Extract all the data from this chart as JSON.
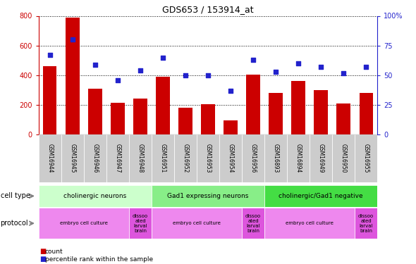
{
  "title": "GDS653 / 153914_at",
  "samples": [
    "GSM16944",
    "GSM16945",
    "GSM16946",
    "GSM16947",
    "GSM16948",
    "GSM16951",
    "GSM16952",
    "GSM16953",
    "GSM16954",
    "GSM16956",
    "GSM16893",
    "GSM16894",
    "GSM16949",
    "GSM16950",
    "GSM16955"
  ],
  "counts": [
    460,
    790,
    310,
    215,
    245,
    390,
    180,
    205,
    95,
    405,
    280,
    360,
    300,
    210,
    280
  ],
  "percentiles": [
    67,
    80,
    59,
    46,
    54,
    65,
    50,
    50,
    37,
    63,
    53,
    60,
    57,
    52,
    57
  ],
  "bar_color": "#cc0000",
  "dot_color": "#2222cc",
  "ylim_left": [
    0,
    800
  ],
  "ylim_right": [
    0,
    100
  ],
  "yticks_left": [
    0,
    200,
    400,
    600,
    800
  ],
  "yticks_right": [
    0,
    25,
    50,
    75,
    100
  ],
  "cell_type_groups": [
    {
      "label": "cholinergic neurons",
      "start": 0,
      "end": 5,
      "color": "#ccffcc"
    },
    {
      "label": "Gad1 expressing neurons",
      "start": 5,
      "end": 10,
      "color": "#88ee88"
    },
    {
      "label": "cholinergic/Gad1 negative",
      "start": 10,
      "end": 15,
      "color": "#44dd44"
    }
  ],
  "protocol_groups": [
    {
      "label": "embryo cell culture",
      "start": 0,
      "end": 4,
      "color": "#ee88ee"
    },
    {
      "label": "dissoo\nated\nlarval\nbrain",
      "start": 4,
      "end": 5,
      "color": "#dd55dd"
    },
    {
      "label": "embryo cell culture",
      "start": 5,
      "end": 9,
      "color": "#ee88ee"
    },
    {
      "label": "dissoo\nated\nlarval\nbrain",
      "start": 9,
      "end": 10,
      "color": "#dd55dd"
    },
    {
      "label": "embryo cell culture",
      "start": 10,
      "end": 14,
      "color": "#ee88ee"
    },
    {
      "label": "dissoo\nated\nlarval\nbrain",
      "start": 14,
      "end": 15,
      "color": "#dd55dd"
    }
  ],
  "bg_color": "#ffffff",
  "xtick_bg": "#cccccc",
  "legend_items": [
    {
      "marker": "s",
      "color": "#cc0000",
      "label": "count"
    },
    {
      "marker": "s",
      "color": "#2222cc",
      "label": "percentile rank within the sample"
    }
  ]
}
